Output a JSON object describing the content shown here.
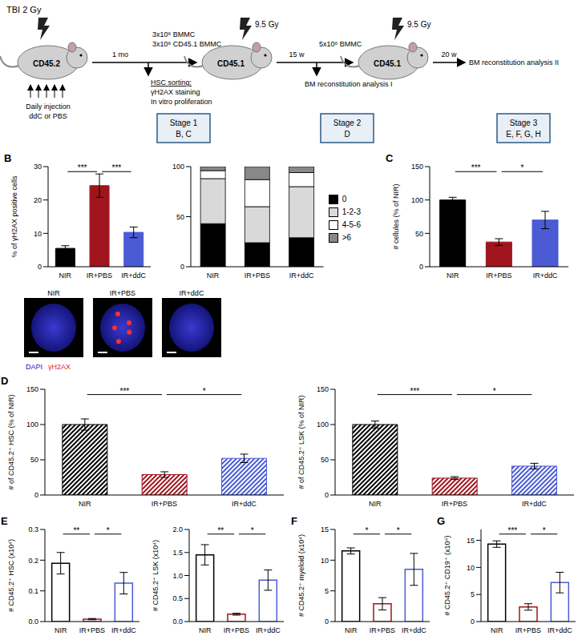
{
  "diagram": {
    "doses": [
      "TBI 2 Gy",
      "9.5 Gy",
      "9.5 Gy"
    ],
    "mice": [
      "CD45.2",
      "CD45.1",
      "CD45.1"
    ],
    "intervals": [
      "1 mo",
      "15 w",
      "20 w"
    ],
    "injection": [
      "Daily injection",
      "ddC or PBS"
    ],
    "transplant_1": [
      "3x10⁶ BMMC",
      "3x10⁶ CD45.1 BMMC"
    ],
    "sorting": [
      "HSC sorting:",
      "γH2AX staining",
      "In vitro proliferation"
    ],
    "transplant_2": "5x10⁶ BMMC",
    "analysis_1": "BM reconstitution analysis I",
    "analysis_2": "BM reconstitution analysis II",
    "stages": [
      {
        "name": "Stage 1",
        "panels": "B, C"
      },
      {
        "name": "Stage 2",
        "panels": "D"
      },
      {
        "name": "Stage 3",
        "panels": "E, F, G, H"
      }
    ]
  },
  "images": {
    "labels": [
      "NIR",
      "IR+PBS",
      "IR+ddC"
    ],
    "channels": [
      "DAPI",
      "γH2AX"
    ],
    "foci": [
      0,
      5,
      0
    ]
  },
  "chart_data": [
    {
      "panel": "B",
      "type": "bar",
      "y_label": "% of γH2AX positive cells",
      "categories": [
        "NIR",
        "IR+PBS",
        "IR+ddC"
      ],
      "values": [
        5.5,
        24.3,
        10.3
      ],
      "errors": [
        0.8,
        3.5,
        1.6
      ],
      "colors": [
        "#000000",
        "#a0141e",
        "#4a5bd4"
      ],
      "ylim": [
        0,
        30
      ],
      "yticks": [
        0,
        10,
        20,
        30
      ],
      "significance": [
        {
          "pair": [
            "NIR",
            "IR+PBS"
          ],
          "label": "***"
        },
        {
          "pair": [
            "IR+PBS",
            "IR+ddC"
          ],
          "label": "***"
        }
      ]
    },
    {
      "type": "bar",
      "stacked": true,
      "legend": "right",
      "categories": [
        "NIR",
        "IR+PBS",
        "IR+ddC"
      ],
      "series": [
        {
          "name": "0",
          "color": "#000000",
          "values": [
            43,
            24,
            29
          ]
        },
        {
          "name": "1-2-3",
          "color": "#d9d9d9",
          "values": [
            45,
            36,
            51
          ]
        },
        {
          "name": "4-5-6",
          "color": "#ffffff",
          "values": [
            8,
            27,
            14
          ]
        },
        {
          "name": ">6",
          "color": "#888888",
          "values": [
            4,
            13,
            6
          ]
        }
      ],
      "ylim": [
        0,
        100
      ],
      "yticks": [
        0,
        50,
        100
      ]
    },
    {
      "panel": "C",
      "type": "bar",
      "y_label": "# cellules (% of NIR)",
      "categories": [
        "NIR",
        "IR+PBS",
        "IR+ddC"
      ],
      "values": [
        100,
        37,
        70
      ],
      "errors": [
        4,
        5,
        13
      ],
      "colors": [
        "#000000",
        "#a0141e",
        "#4a5bd4"
      ],
      "ylim": [
        0,
        150
      ],
      "yticks": [
        0,
        50,
        100,
        150
      ],
      "significance": [
        {
          "pair": [
            "NIR",
            "IR+PBS"
          ],
          "label": "***"
        },
        {
          "pair": [
            "IR+PBS",
            "IR+ddC"
          ],
          "label": "*"
        }
      ]
    },
    {
      "panel": "D",
      "type": "bar",
      "y_label": "# of CD45.2⁺ HSC (% of NIR)",
      "categories": [
        "NIR",
        "IR+PBS",
        "IR+ddC"
      ],
      "values": [
        100,
        29,
        52
      ],
      "errors": [
        8,
        4,
        6
      ],
      "colors": [
        "#000000",
        "#a0141e",
        "#4a5bd4"
      ],
      "ylim": [
        0,
        150
      ],
      "yticks": [
        0,
        50,
        100,
        150
      ],
      "significance": [
        {
          "pair": [
            "NIR",
            "IR+PBS"
          ],
          "label": "***"
        },
        {
          "pair": [
            "IR+PBS",
            "IR+ddC"
          ],
          "label": "*"
        }
      ]
    },
    {
      "type": "bar",
      "y_label": "# of CD45.2⁺ LSK (% of NIR)",
      "categories": [
        "NIR",
        "IR+PBS",
        "IR+ddC"
      ],
      "values": [
        100,
        24,
        41
      ],
      "errors": [
        5,
        2,
        4
      ],
      "colors": [
        "#000000",
        "#a0141e",
        "#4a5bd4"
      ],
      "ylim": [
        0,
        150
      ],
      "yticks": [
        0,
        50,
        100,
        150
      ],
      "significance": [
        {
          "pair": [
            "NIR",
            "IR+PBS"
          ],
          "label": "***"
        },
        {
          "pair": [
            "IR+PBS",
            "IR+ddC"
          ],
          "label": "*"
        }
      ]
    },
    {
      "panel": "E",
      "type": "bar",
      "y_label": "# CD45.2⁺ HSC (x10⁴)",
      "categories": [
        "NIR",
        "IR+PBS",
        "IR+ddC"
      ],
      "values": [
        0.19,
        0.008,
        0.125
      ],
      "errors": [
        0.035,
        0.002,
        0.035
      ],
      "colors": [
        "#000000",
        "#a0141e",
        "#4a5bd4"
      ],
      "ylim": [
        0,
        0.3
      ],
      "yticks": [
        {
          "value": 0,
          "label": "0.0"
        },
        0.1,
        0.2,
        0.3
      ],
      "significance": [
        {
          "pair": [
            "NIR",
            "IR+PBS"
          ],
          "label": "**"
        },
        {
          "pair": [
            "IR+PBS",
            "IR+ddC"
          ],
          "label": "*"
        }
      ]
    },
    {
      "type": "bar",
      "y_label": "# CD45.2⁺ LSK (x10⁴)",
      "categories": [
        "NIR",
        "IR+PBS",
        "IR+ddC"
      ],
      "values": [
        1.45,
        0.16,
        0.9
      ],
      "errors": [
        0.22,
        0.02,
        0.22
      ],
      "colors": [
        "#000000",
        "#a0141e",
        "#4a5bd4"
      ],
      "ylim": [
        0,
        2
      ],
      "yticks": [
        {
          "value": 0,
          "label": "0.0"
        },
        0.5,
        {
          "value": 1,
          "label": "1.0"
        },
        1.5,
        {
          "value": 2,
          "label": "2.0"
        }
      ],
      "significance": [
        {
          "pair": [
            "NIR",
            "IR+PBS"
          ],
          "label": "**"
        },
        {
          "pair": [
            "IR+PBS",
            "IR+ddC"
          ],
          "label": "*"
        }
      ]
    },
    {
      "panel": "F",
      "type": "bar",
      "y_label": "# CD45.2⁺ myeloid (x10⁴)",
      "categories": [
        "NIR",
        "IR+PBS",
        "IR+ddC"
      ],
      "values": [
        11.5,
        2.9,
        8.5
      ],
      "errors": [
        0.5,
        1,
        2.6
      ],
      "colors": [
        "#000000",
        "#a0141e",
        "#4a5bd4"
      ],
      "ylim": [
        0,
        15
      ],
      "yticks": [
        0,
        5,
        10,
        15
      ],
      "significance": [
        {
          "pair": [
            "NIR",
            "IR+PBS"
          ],
          "label": "*"
        },
        {
          "pair": [
            "IR+PBS",
            "IR+ddC"
          ],
          "label": "*"
        }
      ]
    },
    {
      "panel": "G",
      "type": "bar",
      "y_label": "# CD45.2⁺ CD19⁺ (x10⁴)",
      "categories": [
        "NIR",
        "IR+PBS",
        "IR+ddC"
      ],
      "values": [
        14.3,
        2.7,
        7.2
      ],
      "errors": [
        0.6,
        0.6,
        1.9
      ],
      "colors": [
        "#000000",
        "#a0141e",
        "#4a5bd4"
      ],
      "ylim": [
        0,
        17
      ],
      "yticks": [
        0,
        5,
        10,
        15
      ],
      "significance": [
        {
          "pair": [
            "NIR",
            "IR+PBS"
          ],
          "label": "***"
        },
        {
          "pair": [
            "IR+PBS",
            "IR+ddC"
          ],
          "label": "*"
        }
      ]
    }
  ]
}
